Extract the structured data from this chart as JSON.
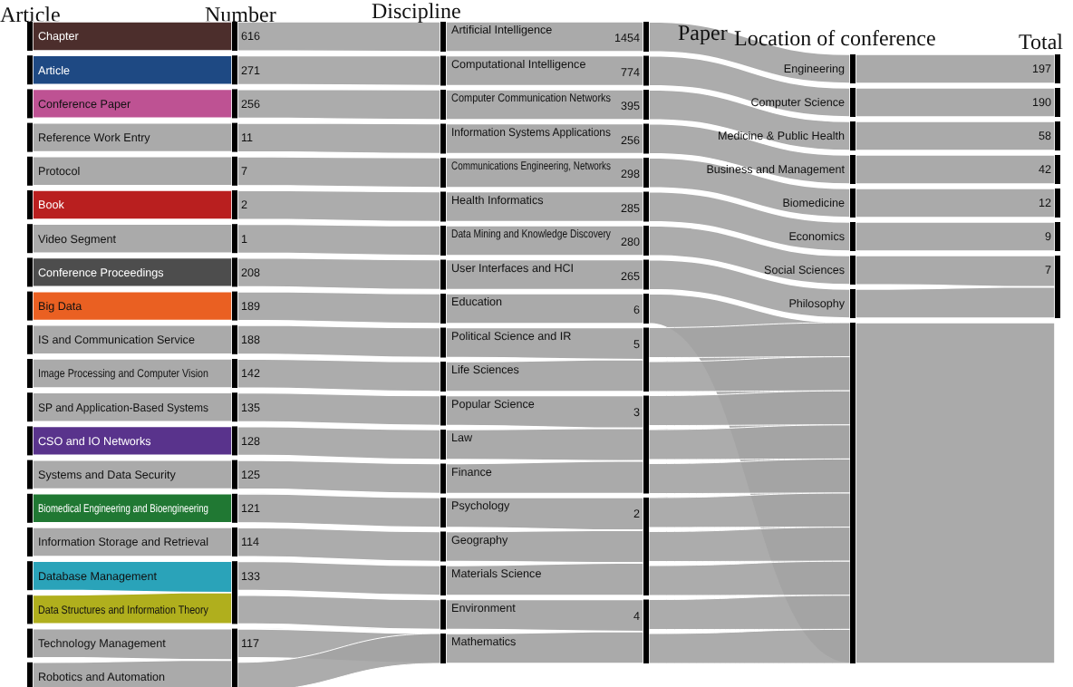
{
  "chart_data": [
    {
      "type": "other",
      "title": "Article",
      "data_labels": true,
      "categories": [
        "Chapter",
        "Article",
        "Conference Paper",
        "Reference Work Entry",
        "Protocol",
        "Book",
        "Video Segment",
        "Conference Proceedings",
        "Big Data",
        "IS and Communication Service",
        "Image Processing and Computer Vision",
        "SP and Application-Based Systems",
        "CSO and IO Networks",
        "Systems and Data Security",
        "Biomedical Engineering and Bioengineering",
        "Information Storage and Retrieval",
        "Database Management",
        "Data Structures and Information Theory",
        "Technology Management",
        "Robotics and Automation"
      ],
      "colors": [
        "#3d1c1a",
        "#0b3a78",
        "#b8438a",
        "#a3a3a3",
        "#a3a3a3",
        "#b30c0c",
        "#a3a3a3",
        "#3e3e3e",
        "#e8520f",
        "#a3a3a3",
        "#a3a3a3",
        "#a3a3a3",
        "#4b2282",
        "#a3a3a3",
        "#0d6d22",
        "#a3a3a3",
        "#189bb3",
        "#a9a80a",
        "#a3a3a3",
        "#a3a3a3"
      ],
      "series": [
        {
          "name": "Number",
          "values": [
            616,
            271,
            256,
            11,
            7,
            2,
            1,
            208,
            189,
            188,
            142,
            135,
            128,
            125,
            121,
            114,
            133,
            null,
            117,
            null
          ]
        }
      ]
    },
    {
      "type": "other",
      "title": "Discipline",
      "data_labels": true,
      "categories": [
        "Artificial Intelligence",
        "Computational Intelligence",
        "Computer Communication Networks",
        "Information Systems Applications",
        "Communications Engineering, Networks",
        "Health Informatics",
        "Data Mining and Knowledge Discovery",
        "User Interfaces and HCI",
        "Education",
        "Political Science and IR",
        "Life Sciences",
        "Popular Science",
        "Law",
        "Finance",
        "Psychology",
        "Geography",
        "Materials Science",
        "Environment",
        "Mathematics"
      ],
      "series": [
        {
          "name": "Paper",
          "values": [
            1454,
            774,
            395,
            256,
            298,
            285,
            280,
            265,
            6,
            5,
            null,
            3,
            null,
            null,
            2,
            null,
            null,
            4,
            null
          ]
        }
      ]
    },
    {
      "type": "other",
      "title": "Location of conference",
      "data_labels": true,
      "categories": [
        "Engineering",
        "Computer Science",
        "Medicine & Public Health",
        "Business and Management",
        "Biomedicine",
        "Economics",
        "Social Sciences",
        "Philosophy",
        null
      ],
      "series": [
        {
          "name": "Total",
          "values": [
            197,
            190,
            58,
            42,
            12,
            9,
            7,
            null,
            null
          ]
        }
      ]
    }
  ]
}
